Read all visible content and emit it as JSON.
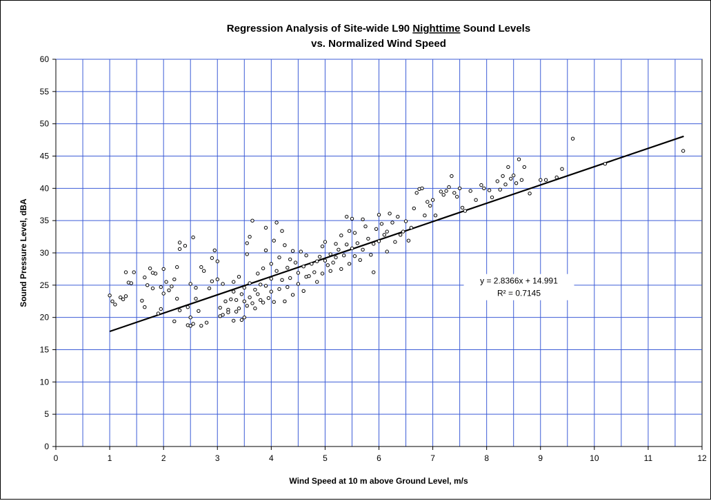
{
  "chart_data": {
    "type": "scatter",
    "title_line1_pre": "Regression Analysis of Site-wide L90 ",
    "title_line1_underlined": "Nighttime",
    "title_line1_post": " Sound Levels",
    "title_line2": "vs. Normalized Wind Speed",
    "xlabel": "Wind Speed at 10 m above Ground Level, m/s",
    "ylabel": "Sound Pressure Level, dBA",
    "xlim": [
      0,
      12
    ],
    "ylim": [
      0,
      60
    ],
    "x_ticks": [
      "0",
      "1",
      "2",
      "3",
      "4",
      "5",
      "6",
      "7",
      "8",
      "9",
      "10",
      "11",
      "12"
    ],
    "y_ticks": [
      "0",
      "5",
      "10",
      "15",
      "20",
      "25",
      "30",
      "35",
      "40",
      "45",
      "50",
      "55",
      "60"
    ],
    "grid": true,
    "vertical_gridline_step": 0.5,
    "gridline_color": "#3b5bd6",
    "marker_color": "#000000",
    "legend": "none",
    "trendline": {
      "slope": 2.8366,
      "intercept": 14.991,
      "x_range": [
        1.0,
        11.66
      ],
      "color": "#000000"
    },
    "annotation": {
      "equation": "y = 2.8366x + 14.991",
      "r_squared": "R² = 0.7145",
      "anchor_x": 8.6,
      "anchor_y": 24.8
    },
    "series": [
      {
        "points": [
          [
            1.0,
            23.4
          ],
          [
            1.05,
            22.5
          ],
          [
            1.1,
            22.0
          ],
          [
            1.2,
            23.1
          ],
          [
            1.25,
            22.8
          ],
          [
            1.3,
            27.0
          ],
          [
            1.3,
            23.3
          ],
          [
            1.35,
            25.4
          ],
          [
            1.4,
            25.3
          ],
          [
            1.45,
            27.0
          ],
          [
            1.6,
            22.6
          ],
          [
            1.65,
            21.6
          ],
          [
            1.65,
            26.2
          ],
          [
            1.7,
            25.0
          ],
          [
            1.75,
            27.6
          ],
          [
            1.8,
            24.5
          ],
          [
            1.8,
            26.9
          ],
          [
            1.85,
            26.8
          ],
          [
            1.9,
            20.6
          ],
          [
            1.95,
            21.3
          ],
          [
            1.95,
            24.7
          ],
          [
            2.0,
            23.7
          ],
          [
            2.05,
            25.5
          ],
          [
            2.0,
            27.5
          ],
          [
            2.1,
            24.2
          ],
          [
            2.15,
            24.8
          ],
          [
            2.2,
            19.4
          ],
          [
            2.2,
            25.9
          ],
          [
            2.25,
            27.8
          ],
          [
            2.25,
            22.9
          ],
          [
            2.3,
            21.1
          ],
          [
            2.3,
            30.6
          ],
          [
            2.3,
            31.6
          ],
          [
            2.4,
            31.1
          ],
          [
            2.45,
            21.6
          ],
          [
            2.45,
            18.8
          ],
          [
            2.5,
            18.7
          ],
          [
            2.5,
            20.0
          ],
          [
            2.55,
            19.0
          ],
          [
            2.55,
            32.4
          ],
          [
            2.5,
            25.2
          ],
          [
            2.6,
            24.6
          ],
          [
            2.6,
            22.9
          ],
          [
            2.65,
            21.0
          ],
          [
            2.7,
            27.8
          ],
          [
            2.75,
            27.2
          ],
          [
            2.7,
            18.7
          ],
          [
            2.8,
            19.2
          ],
          [
            2.85,
            24.5
          ],
          [
            2.9,
            25.6
          ],
          [
            2.9,
            29.2
          ],
          [
            2.95,
            30.4
          ],
          [
            3.0,
            25.9
          ],
          [
            3.0,
            28.7
          ],
          [
            3.05,
            21.5
          ],
          [
            3.05,
            20.2
          ],
          [
            3.1,
            20.4
          ],
          [
            3.15,
            22.5
          ],
          [
            3.1,
            25.2
          ],
          [
            3.2,
            21.2
          ],
          [
            3.2,
            20.8
          ],
          [
            3.25,
            22.8
          ],
          [
            3.3,
            19.5
          ],
          [
            3.3,
            24.0
          ],
          [
            3.3,
            25.5
          ],
          [
            3.35,
            20.9
          ],
          [
            3.35,
            22.7
          ],
          [
            3.4,
            21.4
          ],
          [
            3.4,
            26.3
          ],
          [
            3.45,
            19.6
          ],
          [
            3.45,
            23.6
          ],
          [
            3.5,
            22.5
          ],
          [
            3.5,
            20.0
          ],
          [
            3.5,
            24.6
          ],
          [
            3.55,
            21.8
          ],
          [
            3.55,
            29.8
          ],
          [
            3.55,
            31.5
          ],
          [
            3.6,
            32.5
          ],
          [
            3.6,
            23.1
          ],
          [
            3.6,
            25.3
          ],
          [
            3.65,
            22.2
          ],
          [
            3.65,
            35.0
          ],
          [
            3.7,
            24.3
          ],
          [
            3.7,
            21.4
          ],
          [
            3.75,
            26.8
          ],
          [
            3.75,
            23.6
          ],
          [
            3.8,
            22.7
          ],
          [
            3.8,
            25.1
          ],
          [
            3.85,
            27.6
          ],
          [
            3.85,
            22.3
          ],
          [
            3.9,
            24.9
          ],
          [
            3.9,
            30.4
          ],
          [
            3.9,
            33.9
          ],
          [
            3.95,
            23.0
          ],
          [
            4.0,
            26.0
          ],
          [
            4.0,
            28.3
          ],
          [
            4.0,
            24.0
          ],
          [
            4.05,
            22.4
          ],
          [
            4.05,
            31.9
          ],
          [
            4.1,
            34.7
          ],
          [
            4.1,
            27.2
          ],
          [
            4.15,
            24.4
          ],
          [
            4.15,
            29.3
          ],
          [
            4.2,
            33.4
          ],
          [
            4.2,
            25.8
          ],
          [
            4.25,
            31.2
          ],
          [
            4.25,
            22.5
          ],
          [
            4.3,
            27.7
          ],
          [
            4.3,
            24.7
          ],
          [
            4.35,
            29.0
          ],
          [
            4.35,
            26.1
          ],
          [
            4.4,
            30.3
          ],
          [
            4.4,
            23.5
          ],
          [
            4.45,
            28.5
          ],
          [
            4.5,
            25.2
          ],
          [
            4.5,
            26.9
          ],
          [
            4.55,
            30.2
          ],
          [
            4.6,
            27.9
          ],
          [
            4.6,
            24.1
          ],
          [
            4.65,
            29.6
          ],
          [
            4.65,
            26.3
          ],
          [
            4.7,
            26.4
          ],
          [
            4.75,
            28.3
          ],
          [
            4.8,
            27.0
          ],
          [
            4.85,
            28.7
          ],
          [
            4.85,
            25.5
          ],
          [
            4.9,
            29.4
          ],
          [
            4.95,
            31.0
          ],
          [
            4.95,
            26.8
          ],
          [
            5.0,
            28.8
          ],
          [
            5.0,
            31.7
          ],
          [
            5.05,
            28.1
          ],
          [
            5.1,
            27.2
          ],
          [
            5.1,
            29.8
          ],
          [
            5.15,
            28.5
          ],
          [
            5.2,
            31.4
          ],
          [
            5.2,
            29.3
          ],
          [
            5.25,
            30.5
          ],
          [
            5.3,
            27.5
          ],
          [
            5.3,
            32.7
          ],
          [
            5.35,
            29.6
          ],
          [
            5.4,
            35.6
          ],
          [
            5.4,
            31.3
          ],
          [
            5.45,
            28.3
          ],
          [
            5.45,
            33.4
          ],
          [
            5.5,
            35.3
          ],
          [
            5.5,
            30.7
          ],
          [
            5.55,
            29.5
          ],
          [
            5.55,
            33.1
          ],
          [
            5.6,
            31.5
          ],
          [
            5.65,
            28.9
          ],
          [
            5.7,
            35.2
          ],
          [
            5.7,
            30.5
          ],
          [
            5.75,
            34.1
          ],
          [
            5.8,
            32.2
          ],
          [
            5.85,
            29.7
          ],
          [
            5.9,
            31.4
          ],
          [
            5.9,
            27.0
          ],
          [
            5.95,
            33.7
          ],
          [
            6.0,
            35.9
          ],
          [
            6.0,
            31.8
          ],
          [
            6.05,
            34.5
          ],
          [
            6.1,
            32.8
          ],
          [
            6.15,
            30.2
          ],
          [
            6.15,
            33.3
          ],
          [
            6.2,
            36.1
          ],
          [
            6.25,
            34.7
          ],
          [
            6.3,
            31.7
          ],
          [
            6.35,
            35.6
          ],
          [
            6.4,
            32.8
          ],
          [
            6.45,
            33.3
          ],
          [
            6.5,
            34.9
          ],
          [
            6.55,
            31.9
          ],
          [
            6.6,
            33.9
          ],
          [
            6.65,
            36.9
          ],
          [
            6.7,
            39.3
          ],
          [
            6.75,
            39.9
          ],
          [
            6.8,
            40.0
          ],
          [
            6.85,
            35.8
          ],
          [
            6.9,
            37.9
          ],
          [
            6.95,
            37.3
          ],
          [
            7.0,
            38.2
          ],
          [
            7.05,
            35.8
          ],
          [
            7.15,
            39.5
          ],
          [
            7.2,
            39.0
          ],
          [
            7.25,
            39.6
          ],
          [
            7.3,
            40.2
          ],
          [
            7.35,
            41.9
          ],
          [
            7.4,
            39.3
          ],
          [
            7.45,
            38.7
          ],
          [
            7.5,
            40.0
          ],
          [
            7.55,
            37.0
          ],
          [
            7.6,
            36.5
          ],
          [
            7.7,
            39.6
          ],
          [
            7.8,
            38.2
          ],
          [
            7.9,
            40.5
          ],
          [
            7.95,
            40.0
          ],
          [
            8.05,
            39.7
          ],
          [
            8.1,
            38.6
          ],
          [
            8.2,
            41.1
          ],
          [
            8.25,
            39.8
          ],
          [
            8.3,
            41.9
          ],
          [
            8.35,
            40.6
          ],
          [
            8.4,
            43.3
          ],
          [
            8.45,
            41.5
          ],
          [
            8.5,
            42.0
          ],
          [
            8.55,
            40.8
          ],
          [
            8.6,
            44.5
          ],
          [
            8.65,
            41.3
          ],
          [
            8.7,
            43.3
          ],
          [
            8.8,
            39.2
          ],
          [
            9.0,
            41.3
          ],
          [
            9.1,
            41.3
          ],
          [
            9.3,
            41.7
          ],
          [
            9.4,
            43.0
          ],
          [
            9.6,
            47.7
          ],
          [
            10.2,
            43.8
          ],
          [
            11.65,
            45.8
          ]
        ]
      }
    ]
  }
}
